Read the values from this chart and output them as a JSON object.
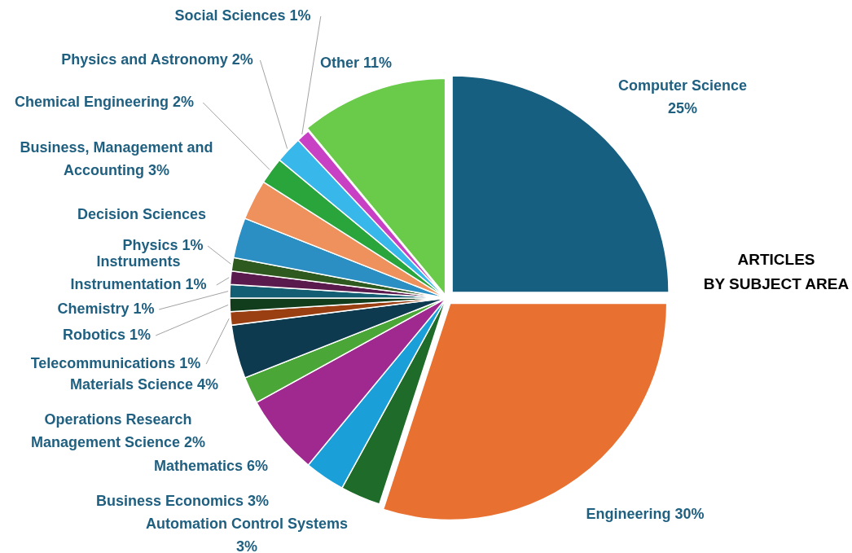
{
  "chart_data": {
    "type": "pie",
    "title": "ARTICLES BY SUBJECT AREA",
    "categories": [
      "Computer Science",
      "Engineering",
      "Automation Control Systems",
      "Business Economics",
      "Mathematics",
      "Operations Research Management Science",
      "Materials Science",
      "Telecommunications",
      "Robotics",
      "Chemistry",
      "Instruments Instrumentation",
      "Physics",
      "Decision Sciences",
      "Business, Management and Accounting",
      "Chemical Engineering",
      "Physics and Astronomy",
      "Social Sciences",
      "Other"
    ],
    "values": [
      25,
      30,
      3,
      3,
      6,
      2,
      4,
      1,
      1,
      1,
      1,
      1,
      3,
      3,
      2,
      2,
      1,
      11
    ],
    "value_labels": [
      "25%",
      "30%",
      "3%",
      "3%",
      "6%",
      "2%",
      "4%",
      "1%",
      "1%",
      "1%",
      "1%",
      "1%",
      null,
      "3%",
      "2%",
      "2%",
      "1%",
      "11%"
    ],
    "colors": [
      "#175f80",
      "#e87131",
      "#1e6b2a",
      "#1a9fd8",
      "#a0298f",
      "#4aa636",
      "#0e3a4f",
      "#9a3f12",
      "#123d1c",
      "#145e73",
      "#5a1a4d",
      "#2f5a1f",
      "#2b8fc4",
      "#ee915c",
      "#2aa53b",
      "#38b8ea",
      "#c841c5",
      "#6acb4a"
    ],
    "legend": false
  }
}
